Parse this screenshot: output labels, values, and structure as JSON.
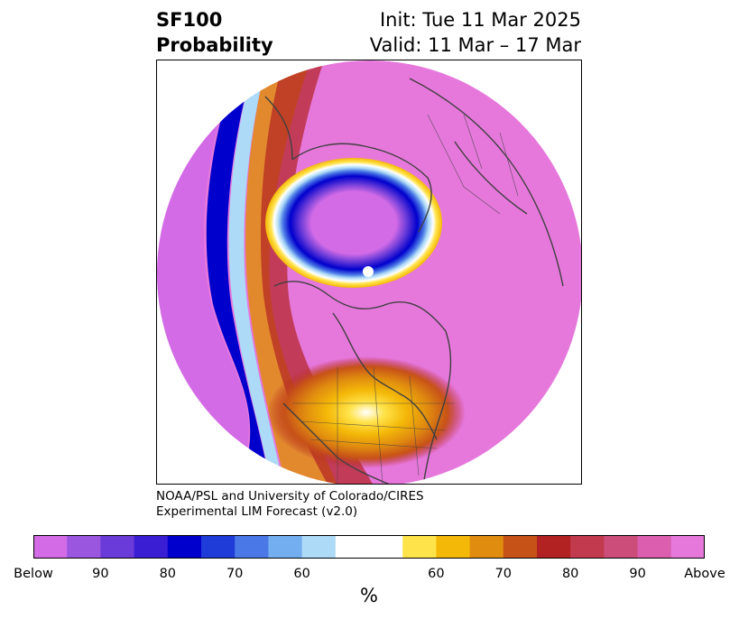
{
  "header": {
    "variable": "SF100",
    "kind": "Probability",
    "init": "Init: Tue 11 Mar 2025",
    "valid": "Valid: 11 Mar – 17 Mar"
  },
  "credit": {
    "line1": "NOAA/PSL and University of Colorado/CIRES",
    "line2": "Experimental LIM Forecast (v2.0)"
  },
  "colorbar": {
    "colors": [
      "#d36be6",
      "#9b56e0",
      "#6a3bd8",
      "#3a1ed4",
      "#0000cd",
      "#1f3bd8",
      "#4a78e6",
      "#72aef0",
      "#acdaf7",
      "#ffffff",
      "#ffffff",
      "#ffe34a",
      "#f4b808",
      "#e08c0f",
      "#c75218",
      "#b22222",
      "#c23a4e",
      "#cc4d7a",
      "#db5fae",
      "#e678dc"
    ],
    "ticks": [
      "Below",
      "90",
      "80",
      "70",
      "60",
      "60",
      "70",
      "80",
      "90",
      "Above"
    ],
    "unit": "%"
  },
  "map": {
    "colors": {
      "above": "#e678dc",
      "below": "#d36be6",
      "coastline": "#404040"
    }
  }
}
